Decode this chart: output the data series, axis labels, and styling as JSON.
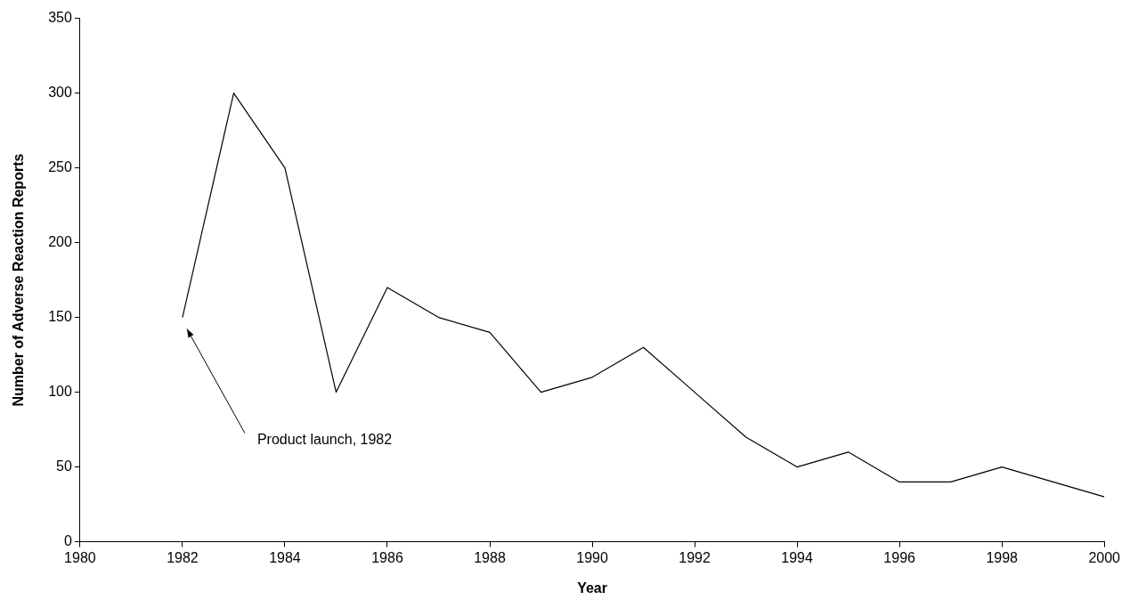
{
  "chart_data": {
    "type": "line",
    "xlabel": "Year",
    "ylabel": "Number of Adverse Reaction Reports",
    "x": [
      1982,
      1983,
      1984,
      1985,
      1986,
      1987,
      1988,
      1989,
      1990,
      1991,
      1992,
      1993,
      1994,
      1995,
      1996,
      1997,
      1998,
      1999,
      2000
    ],
    "series": [
      {
        "color": "#000000",
        "values": [
          150,
          300,
          250,
          100,
          170,
          150,
          140,
          100,
          110,
          130,
          100,
          70,
          50,
          60,
          40,
          40,
          50,
          40,
          30
        ]
      }
    ],
    "xlim": [
      1980,
      2000
    ],
    "xticks": [
      1980,
      1982,
      1984,
      1986,
      1988,
      1990,
      1992,
      1994,
      1996,
      1998,
      2000
    ],
    "ylim": [
      0,
      350
    ],
    "yticks": [
      0,
      50,
      100,
      150,
      200,
      250,
      300,
      350
    ],
    "grid": false,
    "legend": false,
    "marker": "none",
    "line_style": "solid",
    "annotations": [
      "Product launch, 1982"
    ]
  }
}
